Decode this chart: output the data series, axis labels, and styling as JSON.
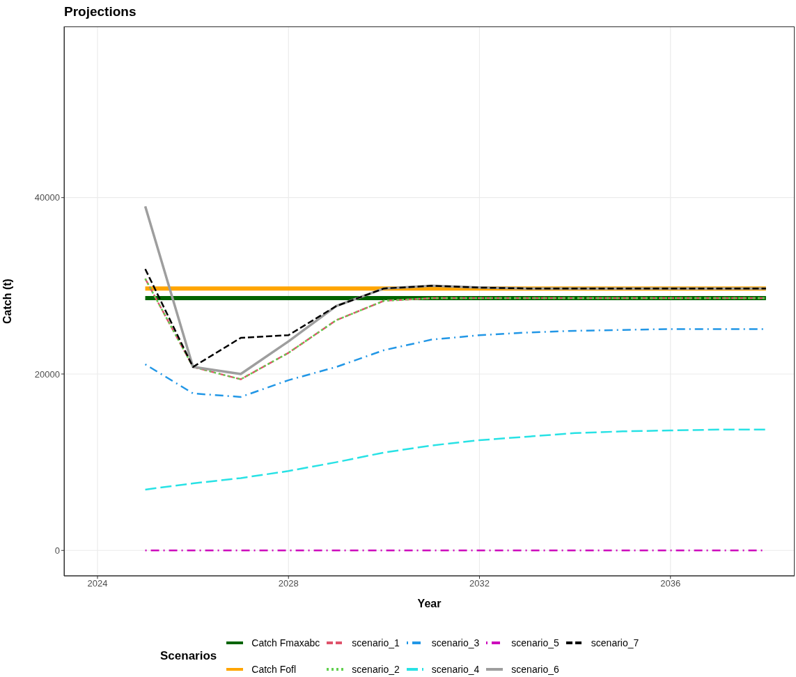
{
  "chart_data": {
    "type": "line",
    "title": "Projections",
    "xlabel": "Year",
    "ylabel": "Catch (t)",
    "legend_title": "Scenarios",
    "legend": "bottom",
    "grid": true,
    "x": [
      2025,
      2026,
      2027,
      2028,
      2029,
      2030,
      2031,
      2032,
      2033,
      2034,
      2035,
      2036,
      2037,
      2038
    ],
    "xlim": [
      2023.3,
      2038.6
    ],
    "xticks": [
      2024,
      2028,
      2032,
      2036
    ],
    "ylim": [
      -2900,
      59400
    ],
    "yticks": [
      0,
      20000,
      40000
    ],
    "series": [
      {
        "name": "Catch Fmaxabc",
        "color": "#006400",
        "line_style": "solid",
        "values": [
          28600,
          28600,
          28600,
          28600,
          28600,
          28600,
          28600,
          28600,
          28600,
          28600,
          28600,
          28600,
          28600,
          28600
        ]
      },
      {
        "name": "Catch Fofl",
        "color": "#ffa500",
        "line_style": "solid",
        "values": [
          29700,
          29700,
          29700,
          29700,
          29700,
          29700,
          29700,
          29700,
          29700,
          29700,
          29700,
          29700,
          29700,
          29700
        ]
      },
      {
        "name": "scenario_1",
        "color": "#df536b",
        "line_style": "dashed",
        "values": [
          30800,
          20800,
          19400,
          22400,
          26100,
          28300,
          28600,
          28600,
          28600,
          28600,
          28600,
          28600,
          28600,
          28600
        ]
      },
      {
        "name": "scenario_2",
        "color": "#61d04f",
        "line_style": "dotted",
        "values": [
          30800,
          20800,
          19400,
          22400,
          26100,
          28300,
          28600,
          28600,
          28600,
          28600,
          28600,
          28600,
          28600,
          28600
        ]
      },
      {
        "name": "scenario_3",
        "color": "#2297e6",
        "line_style": "dashdot",
        "values": [
          21100,
          17800,
          17400,
          19300,
          20800,
          22700,
          23900,
          24400,
          24700,
          24900,
          25000,
          25100,
          25100,
          25100
        ]
      },
      {
        "name": "scenario_4",
        "color": "#28e2e5",
        "line_style": "longdash",
        "values": [
          6900,
          7600,
          8200,
          9000,
          10000,
          11100,
          11900,
          12500,
          12900,
          13300,
          13500,
          13600,
          13700,
          13700
        ]
      },
      {
        "name": "scenario_5",
        "color": "#cd0bbc",
        "line_style": "dashdot",
        "values": [
          0,
          0,
          0,
          0,
          0,
          0,
          0,
          0,
          0,
          0,
          0,
          0,
          0,
          0
        ]
      },
      {
        "name": "scenario_6",
        "color": "#9e9e9e",
        "line_style": "solid",
        "values": [
          39000,
          20800,
          20000,
          23700,
          27700,
          29700,
          30000,
          29800,
          29700,
          29700,
          29700,
          29700,
          29700,
          29700
        ]
      },
      {
        "name": "scenario_7",
        "color": "#000000",
        "line_style": "dashed",
        "values": [
          31900,
          20800,
          24100,
          24400,
          27700,
          29700,
          30000,
          29800,
          29700,
          29700,
          29700,
          29700,
          29700,
          29700
        ]
      }
    ]
  }
}
